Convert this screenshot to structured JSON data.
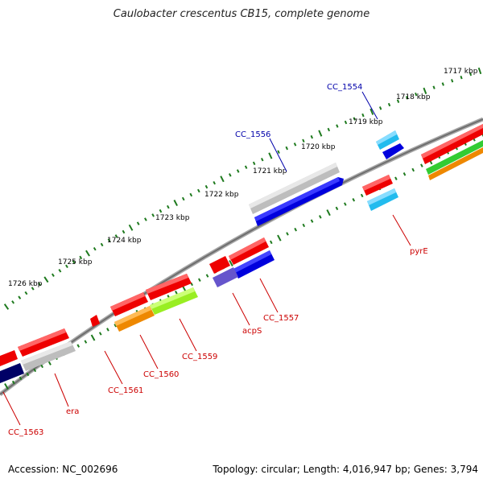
{
  "title": "Caulobacter crescentus CB15, complete genome",
  "footer": {
    "accession": "Accession: NC_002696",
    "summary": "Topology: circular; Length: 4,016,947 bp; Genes: 3,794"
  },
  "colors": {
    "backbone": "#808080",
    "ticks": "#1e7a1e",
    "forward_label": "#0000aa",
    "reverse_label": "#cc0000",
    "cds": "#ee0000",
    "gene_gray": "#bdbdbd",
    "gene_blue": "#0000dd",
    "gene_navy": "#000066",
    "gene_cyan": "#22bbee",
    "gene_orange": "#ee8800",
    "gene_lime": "#99ee22",
    "gene_green": "#33cc33",
    "gene_purple": "#6655cc"
  },
  "kbp_labels": [
    "1717 kbp",
    "1718 kbp",
    "1719 kbp",
    "1720 kbp",
    "1721 kbp",
    "1722 kbp",
    "1723 kbp",
    "1724 kbp",
    "1725 kbp",
    "1726 kbp"
  ],
  "forward_genes": [
    {
      "name": "CC_1554"
    },
    {
      "name": "CC_1556"
    }
  ],
  "reverse_genes": [
    {
      "name": "pyrE"
    },
    {
      "name": "CC_1557"
    },
    {
      "name": "acpS"
    },
    {
      "name": "CC_1559"
    },
    {
      "name": "CC_1560"
    },
    {
      "name": "CC_1561"
    },
    {
      "name": "era"
    },
    {
      "name": "CC_1563"
    }
  ]
}
